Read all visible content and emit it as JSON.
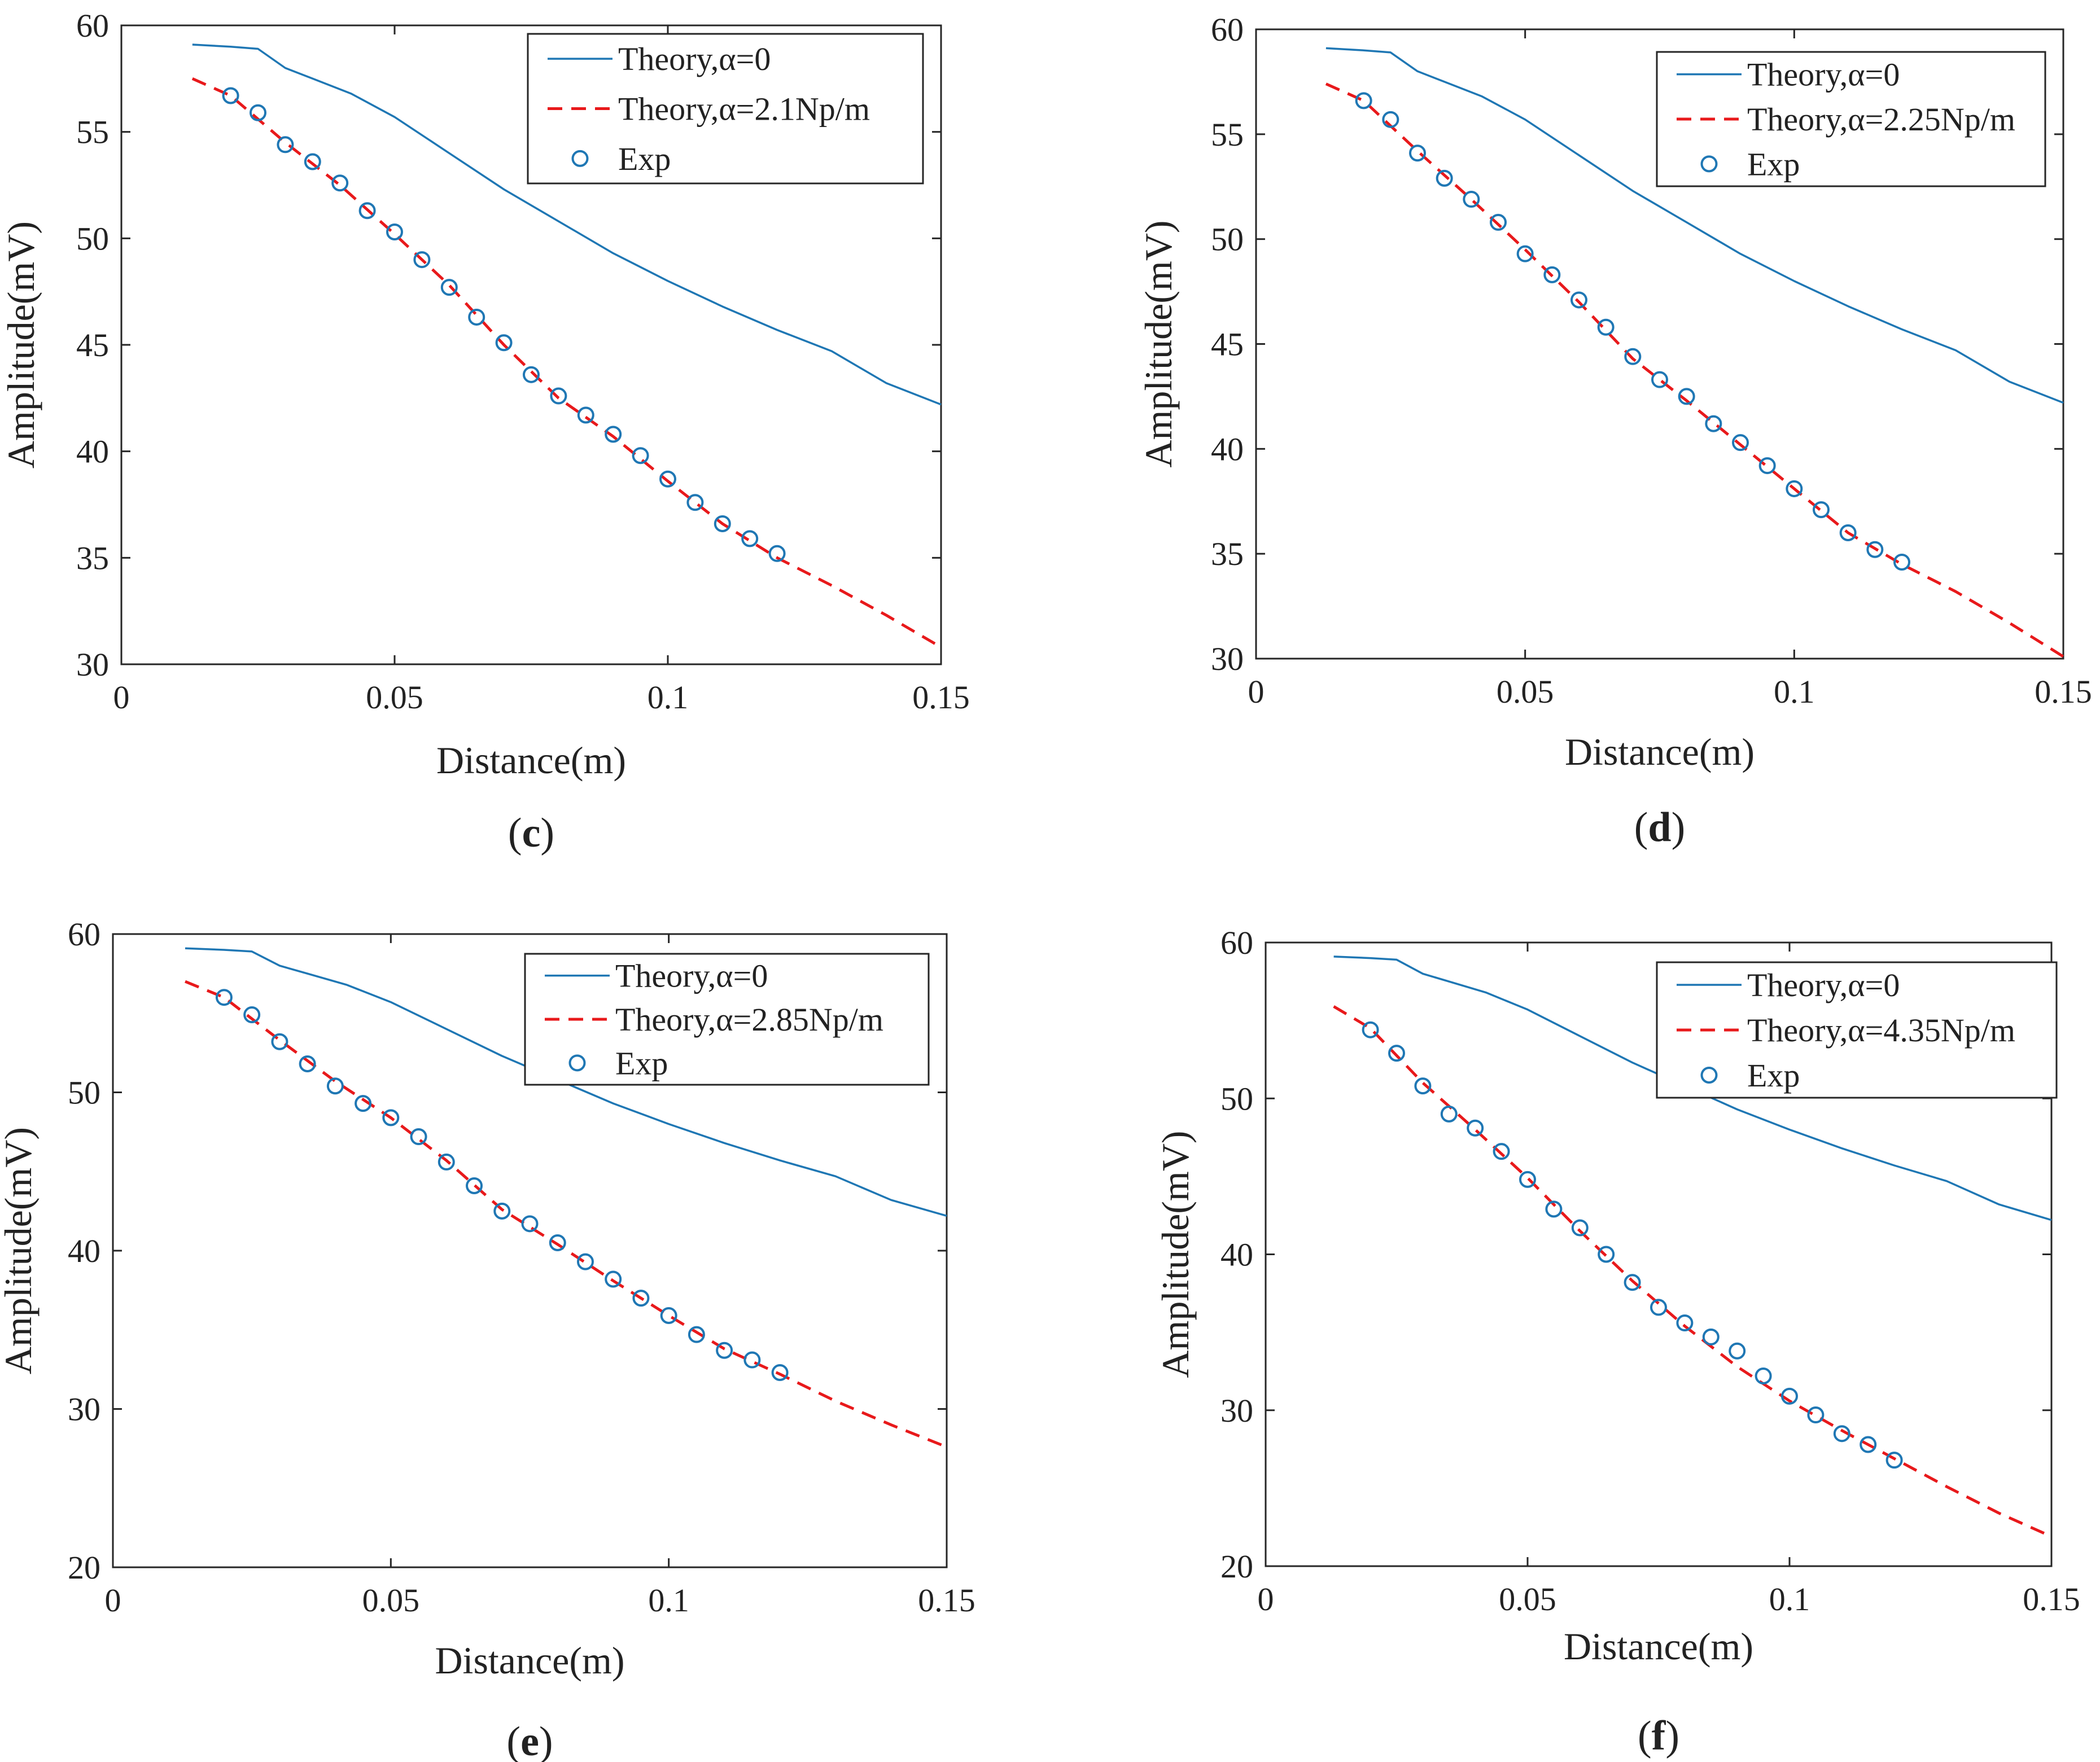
{
  "figure_colors": {
    "theory_no_loss": "#1f77b4",
    "theory_loss": "#e8191b",
    "exp_marker": "#1f77b4",
    "axis": "#262626"
  },
  "chart_data": [
    {
      "panel": "c",
      "panel_label": "(c)",
      "type": "line",
      "xlabel": "Distance(m)",
      "ylabel": "Amplitude(mV)",
      "xlim": [
        0,
        0.15
      ],
      "ylim": [
        30,
        60
      ],
      "xticks": [
        0,
        0.05,
        0.1,
        0.15
      ],
      "xtick_labels": [
        "0",
        "0.05",
        "0.1",
        "0.15"
      ],
      "yticks": [
        30,
        35,
        40,
        45,
        50,
        55,
        60
      ],
      "ytick_labels": [
        "30",
        "35",
        "40",
        "45",
        "50",
        "55",
        "60"
      ],
      "legend": {
        "position": "top-right",
        "entries": [
          "Theory,α=0",
          "Theory,α=2.1Np/m",
          "Exp"
        ]
      },
      "series": [
        {
          "name": "Theory,α=0",
          "style": "solid",
          "x": [
            0.013,
            0.02,
            0.025,
            0.03,
            0.035,
            0.042,
            0.05,
            0.06,
            0.07,
            0.08,
            0.09,
            0.1,
            0.11,
            0.12,
            0.13,
            0.14,
            0.15
          ],
          "y": [
            59.1,
            59.0,
            58.9,
            58.0,
            57.5,
            56.8,
            55.7,
            54.0,
            52.3,
            50.8,
            49.3,
            48.0,
            46.8,
            45.7,
            44.7,
            43.2,
            42.2
          ]
        },
        {
          "name": "Theory,α=2.1Np/m",
          "style": "dashed",
          "x": [
            0.013,
            0.02,
            0.03,
            0.04,
            0.05,
            0.06,
            0.07,
            0.08,
            0.09,
            0.1,
            0.11,
            0.12,
            0.13,
            0.14,
            0.15
          ],
          "y": [
            57.5,
            56.7,
            54.5,
            52.5,
            50.2,
            47.8,
            45.0,
            42.5,
            40.7,
            38.6,
            36.6,
            35.0,
            33.7,
            32.3,
            30.8
          ]
        },
        {
          "name": "Exp",
          "style": "markers",
          "x": [
            0.02,
            0.025,
            0.03,
            0.035,
            0.04,
            0.045,
            0.05,
            0.055,
            0.06,
            0.065,
            0.07,
            0.075,
            0.08,
            0.085,
            0.09,
            0.095,
            0.1,
            0.105,
            0.11,
            0.115,
            0.12
          ],
          "y": [
            56.7,
            55.9,
            54.4,
            53.6,
            52.6,
            51.3,
            50.3,
            49.0,
            47.7,
            46.3,
            45.1,
            43.6,
            42.6,
            41.7,
            40.8,
            39.8,
            38.7,
            37.6,
            36.6,
            35.9,
            35.2
          ]
        }
      ]
    },
    {
      "panel": "d",
      "panel_label": "(d)",
      "type": "line",
      "xlabel": "Distance(m)",
      "ylabel": "Amplitude(mV)",
      "xlim": [
        0,
        0.15
      ],
      "ylim": [
        30,
        60
      ],
      "xticks": [
        0,
        0.05,
        0.1,
        0.15
      ],
      "xtick_labels": [
        "0",
        "0.05",
        "0.1",
        "0.15"
      ],
      "yticks": [
        30,
        35,
        40,
        45,
        50,
        55,
        60
      ],
      "ytick_labels": [
        "30",
        "35",
        "40",
        "45",
        "50",
        "55",
        "60"
      ],
      "legend": {
        "position": "top-right",
        "entries": [
          "Theory,α=0",
          "Theory,α=2.25Np/m",
          "Exp"
        ]
      },
      "series": [
        {
          "name": "Theory,α=0",
          "style": "solid",
          "x": [
            0.013,
            0.02,
            0.025,
            0.03,
            0.035,
            0.042,
            0.05,
            0.06,
            0.07,
            0.08,
            0.09,
            0.1,
            0.11,
            0.12,
            0.13,
            0.14,
            0.15
          ],
          "y": [
            59.1,
            59.0,
            58.9,
            58.0,
            57.5,
            56.8,
            55.7,
            54.0,
            52.3,
            50.8,
            49.3,
            48.0,
            46.8,
            45.7,
            44.7,
            43.2,
            42.2
          ]
        },
        {
          "name": "Theory,α=2.25Np/m",
          "style": "dashed",
          "x": [
            0.013,
            0.02,
            0.03,
            0.04,
            0.05,
            0.06,
            0.07,
            0.08,
            0.09,
            0.1,
            0.11,
            0.12,
            0.13,
            0.14,
            0.15
          ],
          "y": [
            57.4,
            56.6,
            54.2,
            51.9,
            49.5,
            47.0,
            44.3,
            42.3,
            40.2,
            38.1,
            36.0,
            34.5,
            33.2,
            31.7,
            30.1
          ]
        },
        {
          "name": "Exp",
          "style": "markers",
          "x": [
            0.02,
            0.025,
            0.03,
            0.035,
            0.04,
            0.045,
            0.05,
            0.055,
            0.06,
            0.065,
            0.07,
            0.075,
            0.08,
            0.085,
            0.09,
            0.095,
            0.1,
            0.105,
            0.11,
            0.115,
            0.12
          ],
          "y": [
            56.6,
            55.7,
            54.1,
            52.9,
            51.9,
            50.8,
            49.3,
            48.3,
            47.1,
            45.8,
            44.4,
            43.3,
            42.5,
            41.2,
            40.3,
            39.2,
            38.1,
            37.1,
            36.0,
            35.2,
            34.6
          ]
        }
      ]
    },
    {
      "panel": "e",
      "panel_label": "(e)",
      "type": "line",
      "xlabel": "Distance(m)",
      "ylabel": "Amplitude(mV)",
      "xlim": [
        0,
        0.15
      ],
      "ylim": [
        20,
        60
      ],
      "xticks": [
        0,
        0.05,
        0.1,
        0.15
      ],
      "xtick_labels": [
        "0",
        "0.05",
        "0.1",
        "0.15"
      ],
      "yticks": [
        20,
        30,
        40,
        50,
        60
      ],
      "ytick_labels": [
        "20",
        "30",
        "40",
        "50",
        "60"
      ],
      "legend": {
        "position": "top-right",
        "entries": [
          "Theory,α=0",
          "Theory,α=2.85Np/m",
          "Exp"
        ]
      },
      "series": [
        {
          "name": "Theory,α=0",
          "style": "solid",
          "x": [
            0.013,
            0.02,
            0.025,
            0.03,
            0.035,
            0.042,
            0.05,
            0.06,
            0.07,
            0.08,
            0.09,
            0.1,
            0.11,
            0.12,
            0.13,
            0.14,
            0.15
          ],
          "y": [
            59.1,
            59.0,
            58.9,
            58.0,
            57.5,
            56.8,
            55.7,
            54.0,
            52.3,
            50.8,
            49.3,
            48.0,
            46.8,
            45.7,
            44.7,
            43.2,
            42.2
          ]
        },
        {
          "name": "Theory,α=2.85Np/m",
          "style": "dashed",
          "x": [
            0.013,
            0.02,
            0.03,
            0.04,
            0.05,
            0.06,
            0.07,
            0.08,
            0.09,
            0.1,
            0.11,
            0.12,
            0.13,
            0.14,
            0.15
          ],
          "y": [
            57.0,
            56.0,
            53.3,
            50.7,
            48.4,
            45.7,
            42.6,
            40.4,
            38.1,
            35.9,
            33.8,
            32.2,
            30.5,
            29.0,
            27.6
          ]
        },
        {
          "name": "Exp",
          "style": "markers",
          "x": [
            0.02,
            0.025,
            0.03,
            0.035,
            0.04,
            0.045,
            0.05,
            0.055,
            0.06,
            0.065,
            0.07,
            0.075,
            0.08,
            0.085,
            0.09,
            0.095,
            0.1,
            0.105,
            0.11,
            0.115,
            0.12
          ],
          "y": [
            56.0,
            54.9,
            53.2,
            51.8,
            50.4,
            49.3,
            48.4,
            47.2,
            45.6,
            44.1,
            42.5,
            41.7,
            40.5,
            39.3,
            38.2,
            37.0,
            35.9,
            34.7,
            33.7,
            33.1,
            32.3
          ]
        }
      ]
    },
    {
      "panel": "f",
      "panel_label": "(f)",
      "type": "line",
      "xlabel": "Distance(m)",
      "ylabel": "Amplitude(mV)",
      "xlim": [
        0,
        0.15
      ],
      "ylim": [
        20,
        60
      ],
      "xticks": [
        0,
        0.05,
        0.1,
        0.15
      ],
      "xtick_labels": [
        "0",
        "0.05",
        "0.1",
        "0.15"
      ],
      "yticks": [
        20,
        30,
        40,
        50,
        60
      ],
      "ytick_labels": [
        "20",
        "30",
        "40",
        "50",
        "60"
      ],
      "legend": {
        "position": "top-right",
        "entries": [
          "Theory,α=0",
          "Theory,α=4.35Np/m",
          "Exp"
        ]
      },
      "series": [
        {
          "name": "Theory,α=0",
          "style": "solid",
          "x": [
            0.013,
            0.02,
            0.025,
            0.03,
            0.035,
            0.042,
            0.05,
            0.06,
            0.07,
            0.08,
            0.09,
            0.1,
            0.11,
            0.12,
            0.13,
            0.14,
            0.15
          ],
          "y": [
            59.1,
            59.0,
            58.9,
            58.0,
            57.5,
            56.8,
            55.7,
            54.0,
            52.3,
            50.8,
            49.3,
            48.0,
            46.8,
            45.7,
            44.7,
            43.2,
            42.2
          ]
        },
        {
          "name": "Theory,α=4.35Np/m",
          "style": "dashed",
          "x": [
            0.013,
            0.02,
            0.03,
            0.04,
            0.05,
            0.06,
            0.07,
            0.08,
            0.09,
            0.1,
            0.11,
            0.12,
            0.13,
            0.14,
            0.15
          ],
          "y": [
            55.9,
            54.5,
            51.0,
            48.0,
            44.9,
            41.5,
            38.3,
            35.4,
            32.8,
            30.6,
            28.7,
            26.9,
            25.1,
            23.4,
            21.9
          ]
        },
        {
          "name": "Exp",
          "style": "markers",
          "x": [
            0.02,
            0.025,
            0.03,
            0.035,
            0.04,
            0.045,
            0.05,
            0.055,
            0.06,
            0.065,
            0.07,
            0.075,
            0.08,
            0.085,
            0.09,
            0.095,
            0.1,
            0.105,
            0.11,
            0.115,
            0.12
          ],
          "y": [
            54.4,
            52.9,
            50.8,
            49.0,
            48.1,
            46.6,
            44.8,
            42.9,
            41.7,
            40.0,
            38.2,
            36.6,
            35.6,
            34.7,
            33.8,
            32.2,
            30.9,
            29.7,
            28.5,
            27.8,
            26.8
          ]
        }
      ]
    }
  ]
}
